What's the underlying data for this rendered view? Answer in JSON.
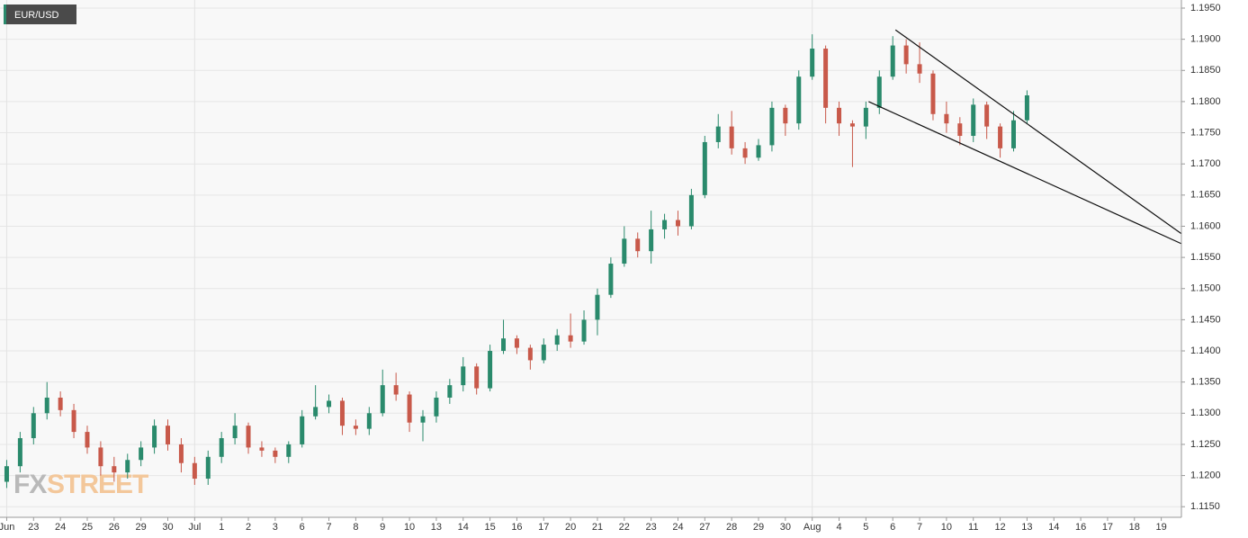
{
  "chart_data": {
    "type": "candlestick",
    "title": "EUR/USD",
    "watermark": [
      "FX",
      "STREET"
    ],
    "up_color": "#2a8a6c",
    "down_color": "#c8594a",
    "grid": true,
    "categories": [
      "Jun",
      null,
      "23",
      null,
      "24",
      null,
      "25",
      null,
      "26",
      null,
      "29",
      null,
      "30",
      null,
      "Jul",
      null,
      "1",
      null,
      "2",
      null,
      "3",
      null,
      "6",
      null,
      "7",
      null,
      "8",
      null,
      "9",
      null,
      "10",
      null,
      "13",
      null,
      "14",
      null,
      "15",
      null,
      "16",
      null,
      "17",
      null,
      "20",
      null,
      "21",
      null,
      "22",
      null,
      "23",
      null,
      "24",
      null,
      "27",
      null,
      "28",
      null,
      "29",
      null,
      "30",
      null,
      "Aug",
      null,
      "4",
      null,
      "5",
      null,
      "6",
      null,
      "7",
      null,
      "10",
      null,
      "11",
      null,
      "12",
      null,
      "13",
      null,
      "14",
      null,
      "16",
      null,
      "17",
      null,
      "18",
      null,
      "19",
      null
    ],
    "open": [
      1.119,
      1.1215,
      1.126,
      1.13,
      1.1325,
      1.1305,
      1.127,
      1.1245,
      1.1215,
      1.1205,
      1.1225,
      1.1245,
      1.128,
      1.125,
      1.122,
      1.1195,
      1.123,
      1.126,
      1.128,
      1.1245,
      1.124,
      1.123,
      1.125,
      1.1295,
      1.131,
      1.132,
      1.128,
      1.1275,
      1.13,
      1.1345,
      1.133,
      1.1285,
      1.1295,
      1.1325,
      1.1345,
      1.1375,
      1.134,
      1.14,
      1.142,
      1.1405,
      1.1385,
      1.141,
      1.1425,
      1.1415,
      1.145,
      1.149,
      1.154,
      1.158,
      1.156,
      1.1595,
      1.161,
      1.16,
      1.165,
      1.1735,
      1.176,
      1.1725,
      1.171,
      1.173,
      1.179,
      1.1765,
      1.184,
      1.1885,
      1.179,
      1.1765,
      1.176,
      1.179,
      1.184,
      1.189,
      1.186,
      1.1845,
      1.178,
      1.1765,
      1.1745,
      1.1795,
      1.176,
      1.1725,
      1.177,
      null,
      null,
      null,
      null,
      null,
      null,
      null,
      null,
      null,
      null,
      null
    ],
    "high": [
      1.1225,
      1.127,
      1.131,
      1.135,
      1.1335,
      1.1315,
      1.128,
      1.1255,
      1.123,
      1.1235,
      1.1255,
      1.129,
      1.129,
      1.126,
      1.123,
      1.124,
      1.127,
      1.13,
      1.1285,
      1.1255,
      1.1245,
      1.1255,
      1.1305,
      1.1345,
      1.133,
      1.1325,
      1.129,
      1.131,
      1.137,
      1.1365,
      1.1335,
      1.1305,
      1.1335,
      1.1355,
      1.139,
      1.138,
      1.141,
      1.145,
      1.1425,
      1.141,
      1.142,
      1.1435,
      1.146,
      1.1465,
      1.15,
      1.155,
      1.16,
      1.159,
      1.1625,
      1.162,
      1.1625,
      1.166,
      1.1745,
      1.178,
      1.1785,
      1.1735,
      1.174,
      1.18,
      1.1795,
      1.185,
      1.1908,
      1.189,
      1.18,
      1.177,
      1.18,
      1.185,
      1.1905,
      1.19,
      1.1895,
      1.185,
      1.18,
      1.1775,
      1.1805,
      1.18,
      1.1765,
      1.1785,
      1.1818,
      null,
      null,
      null,
      null,
      null,
      null,
      null,
      null,
      null,
      null,
      null
    ],
    "low": [
      1.118,
      1.1205,
      1.125,
      1.129,
      1.1295,
      1.126,
      1.1235,
      1.12,
      1.119,
      1.1195,
      1.1215,
      1.1235,
      1.124,
      1.1205,
      1.1185,
      1.1185,
      1.122,
      1.125,
      1.1235,
      1.123,
      1.122,
      1.122,
      1.1245,
      1.129,
      1.13,
      1.1265,
      1.1265,
      1.1265,
      1.1295,
      1.132,
      1.127,
      1.1255,
      1.1285,
      1.1315,
      1.1335,
      1.133,
      1.1335,
      1.1395,
      1.1395,
      1.137,
      1.138,
      1.14,
      1.1405,
      1.141,
      1.1425,
      1.1485,
      1.1535,
      1.155,
      1.154,
      1.158,
      1.1585,
      1.1595,
      1.1645,
      1.1725,
      1.1715,
      1.17,
      1.1705,
      1.172,
      1.1745,
      1.1755,
      1.1835,
      1.1765,
      1.1745,
      1.1695,
      1.174,
      1.178,
      1.1835,
      1.1845,
      1.183,
      1.177,
      1.175,
      1.173,
      1.1735,
      1.174,
      1.171,
      1.172,
      1.1765,
      null,
      null,
      null,
      null,
      null,
      null,
      null,
      null,
      null,
      null,
      null
    ],
    "close": [
      1.1215,
      1.126,
      1.13,
      1.1325,
      1.1305,
      1.127,
      1.1245,
      1.1215,
      1.1205,
      1.1225,
      1.1245,
      1.128,
      1.125,
      1.122,
      1.1195,
      1.123,
      1.126,
      1.128,
      1.1245,
      1.124,
      1.123,
      1.125,
      1.1295,
      1.131,
      1.132,
      1.128,
      1.1275,
      1.13,
      1.1345,
      1.133,
      1.1285,
      1.1295,
      1.1325,
      1.1345,
      1.1375,
      1.134,
      1.14,
      1.142,
      1.1405,
      1.1385,
      1.141,
      1.1425,
      1.1415,
      1.145,
      1.149,
      1.154,
      1.158,
      1.156,
      1.1595,
      1.161,
      1.16,
      1.165,
      1.1735,
      1.176,
      1.1725,
      1.171,
      1.173,
      1.179,
      1.1765,
      1.184,
      1.1885,
      1.179,
      1.1765,
      1.176,
      1.179,
      1.184,
      1.189,
      1.186,
      1.1845,
      1.178,
      1.1765,
      1.1745,
      1.1795,
      1.176,
      1.1725,
      1.177,
      1.181,
      null,
      null,
      null,
      null,
      null,
      null,
      null,
      null,
      null,
      null,
      null
    ],
    "trendlines": [
      {
        "x": [
          66.7,
          88
        ],
        "y": [
          1.1915,
          1.1588
        ]
      },
      {
        "x": [
          64.7,
          88
        ],
        "y": [
          1.18,
          1.1572
        ]
      }
    ],
    "ylim": [
      1.1133,
      1.1963
    ],
    "yticks": [
      {
        "value": 1.115,
        "label": "1.1150"
      },
      {
        "value": 1.12,
        "label": "1.1200"
      },
      {
        "value": 1.125,
        "label": "1.1250"
      },
      {
        "value": 1.13,
        "label": "1.1300"
      },
      {
        "value": 1.135,
        "label": "1.1350"
      },
      {
        "value": 1.14,
        "label": "1.1400"
      },
      {
        "value": 1.145,
        "label": "1.1450"
      },
      {
        "value": 1.15,
        "label": "1.1500"
      },
      {
        "value": 1.155,
        "label": "1.1550"
      },
      {
        "value": 1.16,
        "label": "1.1600"
      },
      {
        "value": 1.165,
        "label": "1.1650"
      },
      {
        "value": 1.17,
        "label": "1.1700"
      },
      {
        "value": 1.175,
        "label": "1.1750"
      },
      {
        "value": 1.18,
        "label": "1.1800"
      },
      {
        "value": 1.185,
        "label": "1.1850"
      },
      {
        "value": 1.19,
        "label": "1.1900"
      },
      {
        "value": 1.195,
        "label": "1.1950"
      }
    ]
  }
}
